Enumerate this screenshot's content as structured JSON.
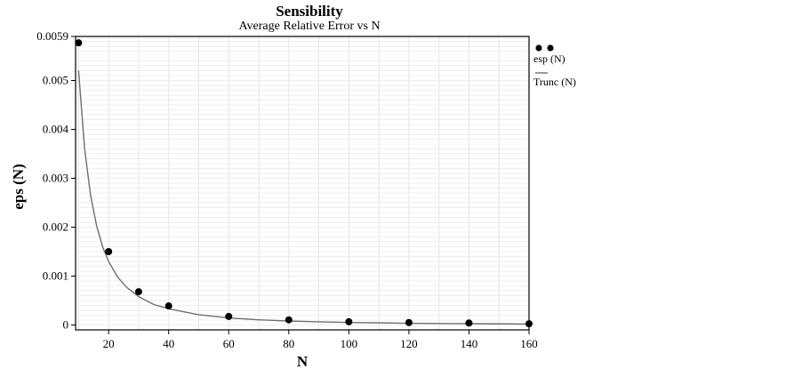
{
  "chart_data": {
    "type": "scatter",
    "title": "Sensibility",
    "subtitle": "Average Relative Error vs N",
    "xlabel": "N",
    "ylabel": "eps (N)",
    "xlim": [
      9,
      160
    ],
    "ylim": [
      -0.0001,
      0.0059
    ],
    "x_ticks": [
      20,
      40,
      60,
      80,
      100,
      120,
      140,
      160
    ],
    "x_tick_labels": [
      "20",
      "40",
      "60",
      "80",
      "100",
      "120",
      "140",
      "160"
    ],
    "y_ticks": [
      0,
      0.001,
      0.002,
      0.003,
      0.004,
      0.005,
      0.0059
    ],
    "y_tick_labels": [
      "0",
      "0.001",
      "0.002",
      "0.003",
      "0.004",
      "0.005",
      "0.0059"
    ],
    "grid": true,
    "legend_position": "right-top",
    "series": [
      {
        "name": "esp (N)",
        "kind": "scatter",
        "color": "#000000",
        "x": [
          10,
          20,
          30,
          40,
          60,
          80,
          100,
          120,
          140,
          160
        ],
        "y": [
          0.00577,
          0.0015,
          0.00068,
          0.00039,
          0.000175,
          0.000105,
          6.5e-05,
          5e-05,
          4e-05,
          2.5e-05
        ]
      },
      {
        "name": "Trunc (N)",
        "kind": "line",
        "color": "#6e6e6e",
        "x": [
          10,
          12,
          14,
          16,
          18,
          20,
          23,
          26,
          30,
          35,
          40,
          50,
          60,
          70,
          80,
          90,
          100,
          110,
          120,
          130,
          140,
          150,
          160
        ],
        "y": [
          0.0052,
          0.00361,
          0.00265,
          0.00203,
          0.0016,
          0.0013,
          0.00098,
          0.00077,
          0.00058,
          0.00042,
          0.00033,
          0.00021,
          0.000144,
          0.000106,
          8.1e-05,
          6.4e-05,
          5.2e-05,
          4.3e-05,
          3.6e-05,
          3.1e-05,
          2.7e-05,
          2.3e-05,
          2e-05
        ]
      }
    ]
  }
}
